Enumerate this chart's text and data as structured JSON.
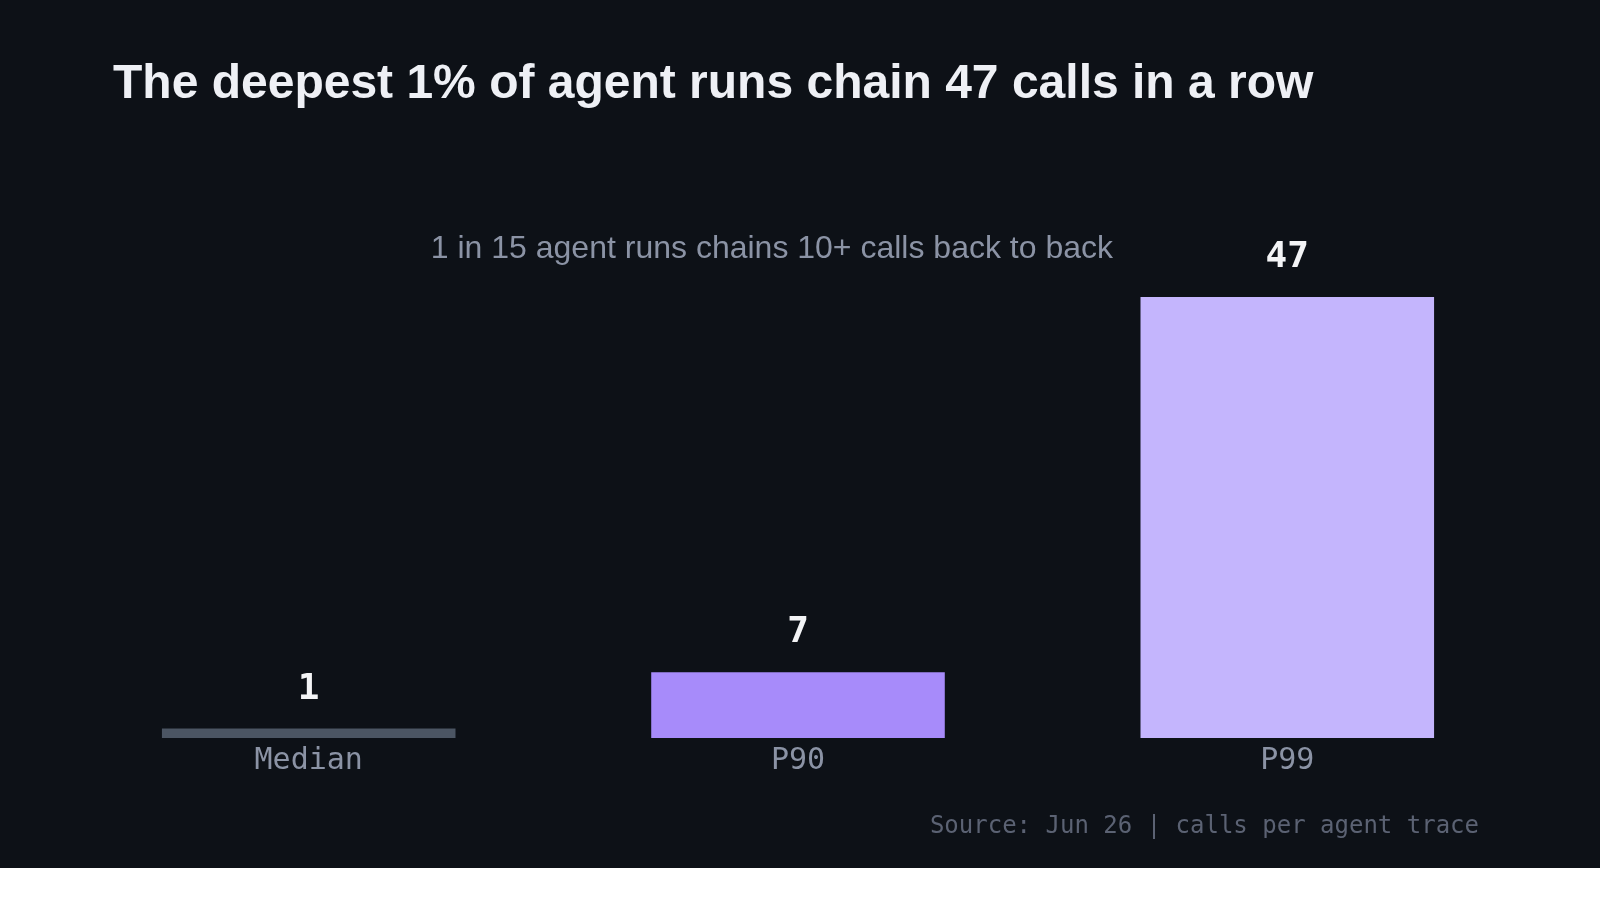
{
  "chart_data": {
    "type": "bar",
    "title": "The deepest 1% of agent runs chain 47 calls in a row",
    "categories": [
      "Median",
      "P90",
      "P99"
    ],
    "values": [
      1,
      7,
      47
    ],
    "colors": [
      "#4b5563",
      "#a78bfa",
      "#c4b5fd"
    ],
    "data_labels": true,
    "annotations": [
      "1 in 15 agent runs chains 10+ calls back to back",
      "Source: Jun 26 | calls per agent trace"
    ]
  }
}
